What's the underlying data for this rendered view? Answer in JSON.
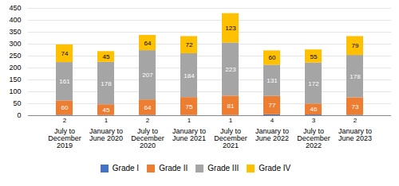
{
  "chart_data": {
    "type": "bar",
    "stacked": true,
    "categories": [
      "July to\nDecember\n2019",
      "January to\nJune 2020",
      "July to\nDecember\n2020",
      "January to\nJune 2021",
      "July to\nDecember\n2021",
      "January to\nJune 2022",
      "July to\nDecember\n2022",
      "January to\nJune 2023"
    ],
    "series": [
      {
        "name": "Grade I",
        "color": "#4472c4",
        "values": [
          2,
          1,
          2,
          1,
          1,
          4,
          3,
          2
        ]
      },
      {
        "name": "Grade II",
        "color": "#ed7d31",
        "values": [
          60,
          45,
          64,
          75,
          81,
          77,
          46,
          73
        ]
      },
      {
        "name": "Grade III",
        "color": "#a5a5a5",
        "values": [
          161,
          178,
          207,
          184,
          223,
          131,
          172,
          178
        ]
      },
      {
        "name": "Grade IV",
        "color": "#ffc000",
        "values": [
          74,
          45,
          64,
          72,
          123,
          60,
          55,
          79
        ]
      }
    ],
    "ylim": [
      0,
      450
    ],
    "yticks": [
      0,
      50,
      100,
      150,
      200,
      250,
      300,
      350,
      400,
      450
    ],
    "grid": true,
    "data_labels": true,
    "legend": "bottom"
  }
}
